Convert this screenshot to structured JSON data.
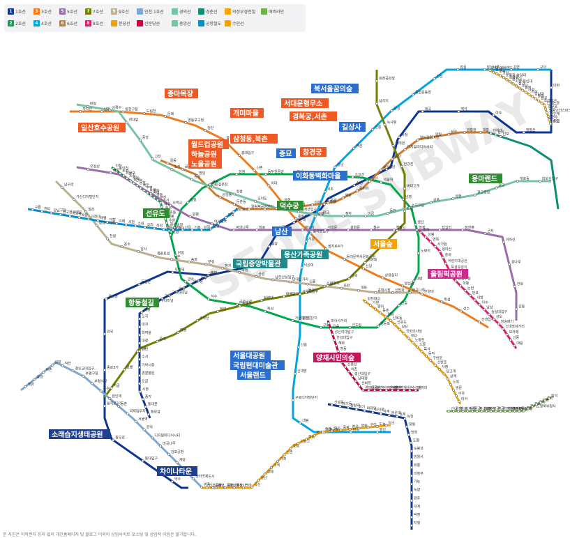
{
  "legend": {
    "items": [
      {
        "num": "1",
        "name": "1호선",
        "color": "#0d3692"
      },
      {
        "num": "3",
        "name": "3호선",
        "color": "#ef7c1c"
      },
      {
        "num": "5",
        "name": "5호선",
        "color": "#996cac"
      },
      {
        "num": "7",
        "name": "7호선",
        "color": "#747f00"
      },
      {
        "num": "9",
        "name": "9호선",
        "color": "#bdb092"
      },
      {
        "num": "",
        "name": "인천 1호선",
        "color": "#7ca8d5"
      },
      {
        "num": "",
        "name": "경의선",
        "color": "#77c4a3"
      },
      {
        "num": "",
        "name": "경춘선",
        "color": "#0c8e72"
      },
      {
        "num": "",
        "name": "의정부경전철",
        "color": "#fda600"
      },
      {
        "num": "",
        "name": "에버라인",
        "color": "#6fb245"
      },
      {
        "num": "2",
        "name": "2호선",
        "color": "#00a84d"
      },
      {
        "num": "4",
        "name": "4호선",
        "color": "#00a5de"
      },
      {
        "num": "6",
        "name": "6호선",
        "color": "#cd7c2f"
      },
      {
        "num": "8",
        "name": "8호선",
        "color": "#e6186c"
      },
      {
        "num": "",
        "name": "분당선",
        "color": "#f5a200"
      },
      {
        "num": "",
        "name": "신분당선",
        "color": "#d4003b"
      },
      {
        "num": "",
        "name": "중앙선",
        "color": "#77c4a3"
      },
      {
        "num": "",
        "name": "공항철도",
        "color": "#0090d2"
      },
      {
        "num": "",
        "name": "수인선",
        "color": "#f5a200"
      }
    ]
  },
  "landmarks": [
    {
      "text": "종마목장",
      "color": "#ef5a24"
    },
    {
      "text": "일산호수공원",
      "color": "#ef5a24"
    },
    {
      "text": "개미마을",
      "color": "#ef5a24"
    },
    {
      "text": "서대문형무소",
      "color": "#ef5a24"
    },
    {
      "text": "경복궁,서촌",
      "color": "#ef5a24"
    },
    {
      "text": "북서울꿈의숲",
      "color": "#2a6fcf"
    },
    {
      "text": "길상사",
      "color": "#2a6fcf"
    },
    {
      "text": "월드컵공원",
      "color": "#ef5a24"
    },
    {
      "text": "하늘공원",
      "color": "#ef5a24"
    },
    {
      "text": "노을공원",
      "color": "#ef5a24"
    },
    {
      "text": "삼청동,북촌",
      "color": "#ef5a24"
    },
    {
      "text": "종묘",
      "color": "#2a6fcf"
    },
    {
      "text": "창경궁",
      "color": "#ef5a24"
    },
    {
      "text": "이화동벽화마을",
      "color": "#2a6fcf"
    },
    {
      "text": "용마랜드",
      "color": "#2f8f2f"
    },
    {
      "text": "덕수궁",
      "color": "#2f8f2f"
    },
    {
      "text": "선유도",
      "color": "#2f8f2f"
    },
    {
      "text": "남산",
      "color": "#2a6fcf"
    },
    {
      "text": "국립중앙박물관",
      "color": "#1f8a8a"
    },
    {
      "text": "용산가족공원",
      "color": "#1f8a8a"
    },
    {
      "text": "서울숲",
      "color": "#f5a200"
    },
    {
      "text": "올림픽공원",
      "color": "#cd2a8e"
    },
    {
      "text": "항동철길",
      "color": "#2f8f2f"
    },
    {
      "text": "서울대공원",
      "color": "#2a6fcf"
    },
    {
      "text": "국립현대미술관",
      "color": "#2a6fcf"
    },
    {
      "text": "서울랜드",
      "color": "#2a6fcf"
    },
    {
      "text": "양재시민의숲",
      "color": "#c2185b"
    },
    {
      "text": "소래습지생태공원",
      "color": "#1f3f8f"
    },
    {
      "text": "차이나타운",
      "color": "#1f3f8f"
    }
  ],
  "stations": [
    "대화",
    "주엽",
    "정발산",
    "마두",
    "백석",
    "대곡",
    "화정",
    "원당",
    "삼송",
    "구파발",
    "연신내",
    "불광",
    "녹번",
    "홍제",
    "무악재",
    "독립문",
    "경복궁",
    "안국",
    "종로3가",
    "을지로3가",
    "충무로",
    "동대입구",
    "약수",
    "금호",
    "옥수",
    "압구정",
    "신사",
    "잠원",
    "고속터미널",
    "교대",
    "남부터미널",
    "양재",
    "매봉",
    "도곡",
    "대치",
    "학여울",
    "대청",
    "일원",
    "수서",
    "가락시장",
    "경찰병원",
    "오금",
    "시청",
    "종각",
    "동대문",
    "동묘앞",
    "신설동",
    "제기동",
    "청량리",
    "회기",
    "외대앞",
    "신이문",
    "석계",
    "광운대",
    "월계",
    "녹천",
    "창동",
    "방학",
    "도봉",
    "도봉산",
    "망월사",
    "회룡",
    "의정부",
    "가능",
    "녹양",
    "양주",
    "덕계",
    "덕정",
    "지행",
    "동두천중앙",
    "보산",
    "동두천",
    "소요산",
    "서울역",
    "남영",
    "용산",
    "노량진",
    "대방",
    "신길",
    "영등포",
    "신도림",
    "구로",
    "가산디지털단지",
    "독산",
    "금천구청",
    "석수",
    "관악",
    "안양",
    "명학",
    "금정",
    "군포",
    "당정",
    "의왕",
    "성균관대",
    "화서",
    "수원",
    "개봉",
    "오류동",
    "온수",
    "역곡",
    "소사",
    "부천",
    "중동",
    "송내",
    "부개",
    "부평",
    "백운",
    "동암",
    "간석",
    "주안",
    "도화",
    "제물포",
    "도원",
    "동인천",
    "인천",
    "까치산",
    "신정",
    "양천구청",
    "도림천",
    "문래",
    "영등포구청",
    "당산",
    "합정",
    "홍대입구",
    "신촌",
    "이대",
    "아현",
    "충정로",
    "을지로입구",
    "을지로4가",
    "동대문역사문화공원",
    "신당",
    "상왕십리",
    "왕십리",
    "한양대",
    "뚝섬",
    "성수",
    "건대입구",
    "구의",
    "강변",
    "잠실나루",
    "잠실",
    "신천",
    "종합운동장",
    "삼성",
    "선릉",
    "역삼",
    "강남",
    "서초",
    "방배",
    "사당",
    "낙성대",
    "서울대입구",
    "봉천",
    "신림",
    "신대방",
    "구로디지털단지",
    "대림",
    "김포공항",
    "마곡",
    "발산",
    "우장산",
    "화곡",
    "강서",
    "목동",
    "오목교",
    "양평",
    "여의도",
    "여의나루",
    "마포",
    "공덕",
    "애오개",
    "서대문",
    "광화문",
    "청구",
    "행당",
    "마장",
    "답십리",
    "장한평",
    "군자",
    "아차산",
    "광나루",
    "천호",
    "강동",
    "길동",
    "굽은다리",
    "명일",
    "고덕",
    "상일동",
    "둔촌동",
    "올림픽공원",
    "방이",
    "개롱",
    "거여",
    "마천",
    "응암",
    "역촌",
    "독바위",
    "구산",
    "새절",
    "증산",
    "디지털미디어시티",
    "월드컵경기장",
    "망원",
    "상수",
    "광흥창",
    "대흥",
    "효창공원앞",
    "삼각지",
    "녹사평",
    "이태원",
    "한강진",
    "버티고개",
    "보문",
    "창신",
    "안암",
    "고려대",
    "월곡",
    "상월곡",
    "돌곶이",
    "태릉입구",
    "화랑대",
    "봉화산",
    "장암",
    "수락산",
    "마들",
    "중계",
    "하계",
    "공릉",
    "먹골",
    "중화",
    "상봉",
    "면목",
    "사가정",
    "용마산",
    "중곡",
    "어린이대공원",
    "뚝섬유원지",
    "청담",
    "강남구청",
    "학동",
    "논현",
    "반포",
    "내방",
    "이수",
    "남성",
    "숭실대입구",
    "상도",
    "장승배기",
    "신대방삼거리",
    "보라매",
    "신풍",
    "대림",
    "남구로",
    "가산디지털단지",
    "철산",
    "광명사거리",
    "천왕",
    "온수",
    "암사",
    "몽촌토성",
    "석촌",
    "송파",
    "문정",
    "장지",
    "복정",
    "산성",
    "남한산성입구",
    "단대오거리",
    "신흥",
    "수진",
    "모란",
    "개화",
    "공항시장",
    "신방화",
    "마곡나루",
    "양천향교",
    "가양",
    "증미",
    "등촌",
    "염창",
    "신목동",
    "선유도",
    "당산",
    "국회의사당",
    "샛강",
    "노량진",
    "노들",
    "흑석",
    "동작",
    "구반포",
    "신반포",
    "사평",
    "당고개",
    "상계",
    "노원",
    "쌍문",
    "수유",
    "미아",
    "미아사거리",
    "길음",
    "성신여대입구",
    "한성대입구",
    "혜화",
    "명동",
    "회현",
    "숙대입구",
    "신용산",
    "이촌",
    "총신대입구",
    "남태령",
    "선바위",
    "경마공원",
    "대공원",
    "과천",
    "정부과천청사",
    "인덕원",
    "평촌",
    "범계",
    "산본",
    "수리산",
    "대야미",
    "반월",
    "상록수",
    "한대앞",
    "중앙",
    "고잔",
    "초지",
    "안산",
    "신길온천",
    "정왕",
    "오이도",
    "양재시민의숲",
    "청계산입구",
    "판교",
    "정자",
    "미금",
    "동천",
    "수지구청",
    "성복",
    "상현",
    "광교중앙",
    "광교",
    "개포동",
    "대모산입구",
    "구룡",
    "한티",
    "강남구청",
    "압구정로데오",
    "서울숲",
    "복정",
    "가천대",
    "태평",
    "야탑",
    "이매",
    "서현",
    "수내",
    "오리",
    "죽전",
    "보정",
    "구성",
    "신갈",
    "기흥",
    "상갈",
    "청명",
    "영통",
    "망포",
    "매탄권선",
    "계양",
    "귤현",
    "박촌",
    "임학",
    "작전",
    "경인교대입구",
    "부평구청",
    "부평시장",
    "동수",
    "원인재",
    "동춘",
    "국제업무지구",
    "서울역",
    "공덕",
    "디지털미디어시티",
    "마곡나루",
    "김포공항",
    "계양",
    "검암",
    "청라국제도시",
    "영종",
    "운서",
    "공항화물청사",
    "인천공항",
    "탄현",
    "일산",
    "풍산",
    "백마",
    "곡산",
    "행신",
    "강매",
    "수색",
    "가좌",
    "신촌",
    "효창",
    "서빙고",
    "한남",
    "옥수",
    "응봉",
    "회기",
    "중랑",
    "망우",
    "양원",
    "구리",
    "도농",
    "덕소",
    "신내",
    "갈매",
    "별내",
    "퇴계원",
    "사릉",
    "금곡",
    "평내호평",
    "천마산",
    "마석",
    "발곡",
    "범골",
    "경전철의정부",
    "의정부시청",
    "흥선",
    "의정부중앙",
    "동오",
    "새말",
    "경기도청북부청사",
    "효자",
    "곤제",
    "어룡",
    "송산",
    "탑석",
    "전대·에버랜드",
    "둔전",
    "보평",
    "고진",
    "운동장·송담대",
    "김량장",
    "명지대",
    "시청·용인대",
    "삼가",
    "초당",
    "동백",
    "어정",
    "지석",
    "강남대",
    "달월",
    "월곶",
    "소래포구",
    "인천논현",
    "호구포",
    "남동인더스파크",
    "원인재",
    "연수",
    "송도",
    "인하대",
    "숭의",
    "신포"
  ],
  "watermark": "SEOUL SUBWAY",
  "footer": "본 사진은 저작권자 등의 없이 개인홈페이지 및 블로그 이외의 상업사이트 포스팅 및 상업적 이용은 불가합니다."
}
